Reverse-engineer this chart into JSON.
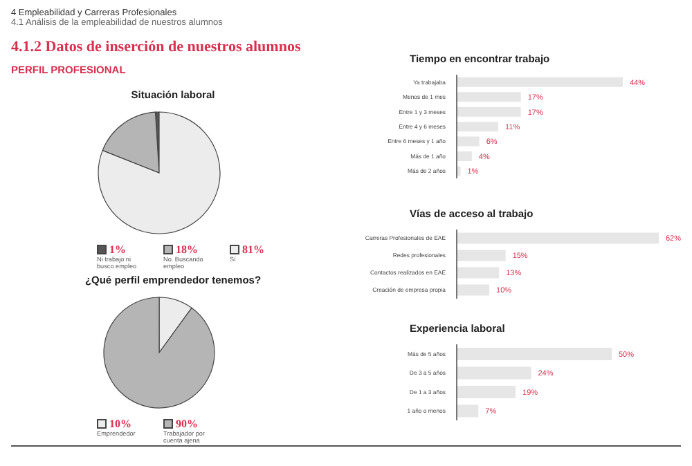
{
  "chart_data": [
    {
      "type": "pie",
      "title": "Situación laboral",
      "annotations": [
        "4 Empleabilidad y Carreras Profesionales",
        "4.1 Análisis de la empleabilidad de nuestros alumnos",
        "4.1.2 Datos de inserción de nuestros alumnos",
        "PERFIL PROFESIONAL"
      ],
      "categories": [
        "Ni trabajo ni busco empleo",
        "No. Buscando empleo",
        "Sí"
      ],
      "values": [
        1,
        18,
        81
      ],
      "value_labels": [
        "1%",
        "18%",
        "81%"
      ],
      "colors": [
        "#555555",
        "#b5b5b5",
        "#ececec"
      ],
      "legend": "bottom"
    },
    {
      "type": "pie",
      "title": "¿Qué perfil emprendedor tenemos?",
      "categories": [
        "Emprendedor",
        "Trabajador por cuenta ajena"
      ],
      "values": [
        10,
        90
      ],
      "value_labels": [
        "10%",
        "90%"
      ],
      "colors": [
        "#ececec",
        "#b5b5b5"
      ],
      "legend": "bottom"
    },
    {
      "type": "bar",
      "orientation": "horizontal",
      "title": "Tiempo en encontrar trabajo",
      "categories": [
        "Ya trabajaba",
        "Menos de 1 mes",
        "Entre 1 y 3 meses",
        "Entre 4 y 6 meses",
        "Entre 6 meses y 1 año",
        "Más de 1 año",
        "Más de 2 años"
      ],
      "values": [
        44,
        17,
        17,
        11,
        6,
        4,
        1
      ],
      "value_labels": [
        "44%",
        "17%",
        "17%",
        "11%",
        "6%",
        "4%",
        "1%"
      ],
      "color": "#e6e6e6"
    },
    {
      "type": "bar",
      "orientation": "horizontal",
      "title": "Vías de acceso al trabajo",
      "categories": [
        "Carreras Profesionales de EAE",
        "Redes profesionales",
        "Contactos realizados en EAE",
        "Creación de empresa propia"
      ],
      "values": [
        62,
        15,
        13,
        10
      ],
      "value_labels": [
        "62%",
        "15%",
        "13%",
        "10%"
      ],
      "color": "#e6e6e6"
    },
    {
      "type": "bar",
      "orientation": "horizontal",
      "title": "Experiencia laboral",
      "categories": [
        "Más de 5 años",
        "De 3 a 5 años",
        "De 1 a 3 años",
        "1 año o menos"
      ],
      "values": [
        50,
        24,
        19,
        7
      ],
      "value_labels": [
        "50%",
        "24%",
        "19%",
        "7%"
      ],
      "color": "#e6e6e6"
    }
  ]
}
